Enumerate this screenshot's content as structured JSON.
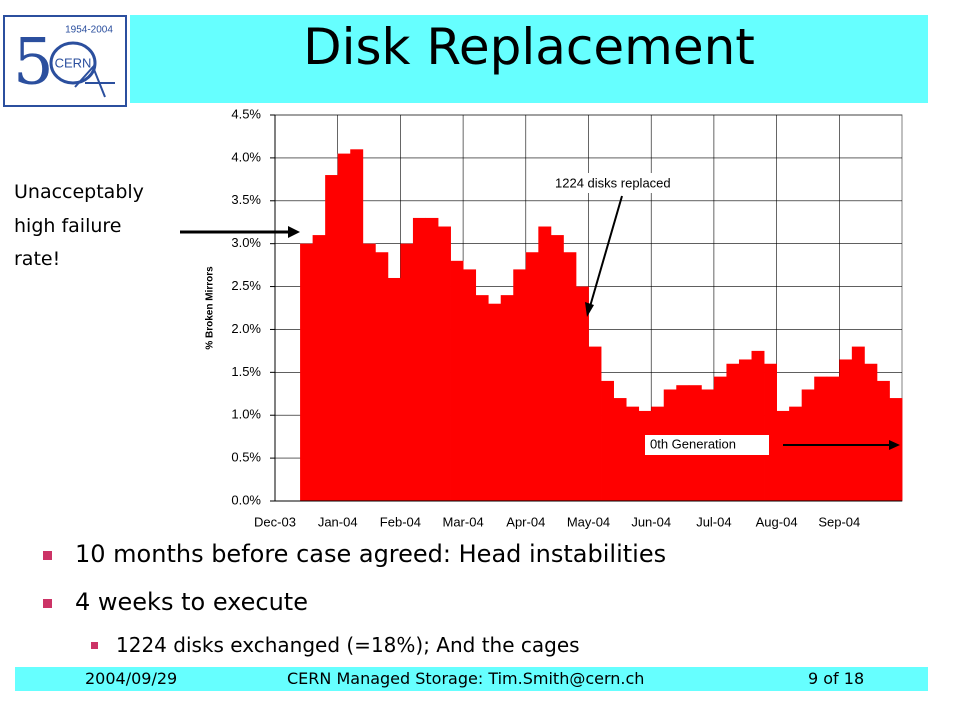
{
  "slide": {
    "title": "Disk Replacement",
    "logo": {
      "years": "1954-2004",
      "name": "CERN"
    },
    "bullets": [
      "10 months before case agreed: Head instabilities",
      "4 weeks to execute"
    ],
    "sub_bullets": [
      "1224 disks exchanged (=18%); And the cages"
    ],
    "footer": {
      "date": "2004/09/29",
      "center": "CERN Managed Storage: Tim.Smith@cern.ch",
      "page": "9 of 18"
    }
  },
  "chart_data": {
    "type": "bar",
    "y_label": "% Broken Mirrors",
    "annotations": [
      "Unacceptably high failure rate!",
      "1224 disks replaced",
      "0th Generation"
    ],
    "categories": [
      "Dec-03",
      null,
      null,
      null,
      null,
      "Jan-04",
      null,
      null,
      null,
      null,
      "Feb-04",
      null,
      null,
      null,
      null,
      "Mar-04",
      null,
      null,
      null,
      null,
      "Apr-04",
      null,
      null,
      null,
      null,
      "May-04",
      null,
      null,
      null,
      null,
      "Jun-04",
      null,
      null,
      null,
      null,
      "Jul-04",
      null,
      null,
      null,
      null,
      "Aug-04",
      null,
      null,
      null,
      null,
      "Sep-04",
      null,
      null,
      null,
      null
    ],
    "values": [
      null,
      null,
      3.0,
      3.1,
      3.8,
      4.05,
      4.1,
      3.0,
      2.9,
      2.6,
      3.0,
      3.3,
      3.3,
      3.2,
      2.8,
      2.7,
      2.4,
      2.3,
      2.4,
      2.7,
      2.9,
      3.2,
      3.1,
      2.9,
      2.5,
      1.8,
      1.4,
      1.2,
      1.1,
      1.05,
      1.1,
      1.3,
      1.35,
      1.35,
      1.3,
      1.45,
      1.6,
      1.65,
      1.75,
      1.6,
      1.05,
      1.1,
      1.3,
      1.45,
      1.45,
      1.65,
      1.8,
      1.6,
      1.4,
      1.2
    ],
    "color": "#ff0000",
    "ylim": [
      0,
      4.5
    ],
    "yticks": [
      {
        "value": 0,
        "label": "0.0%"
      },
      {
        "value": 0.5,
        "label": "0.5%"
      },
      {
        "value": 1,
        "label": "1.0%"
      },
      {
        "value": 1.5,
        "label": "1.5%"
      },
      {
        "value": 2,
        "label": "2.0%"
      },
      {
        "value": 2.5,
        "label": "2.5%"
      },
      {
        "value": 3,
        "label": "3.0%"
      },
      {
        "value": 3.5,
        "label": "3.5%"
      },
      {
        "value": 4,
        "label": "4.0%"
      },
      {
        "value": 4.5,
        "label": "4.5%"
      }
    ],
    "grid": true
  }
}
